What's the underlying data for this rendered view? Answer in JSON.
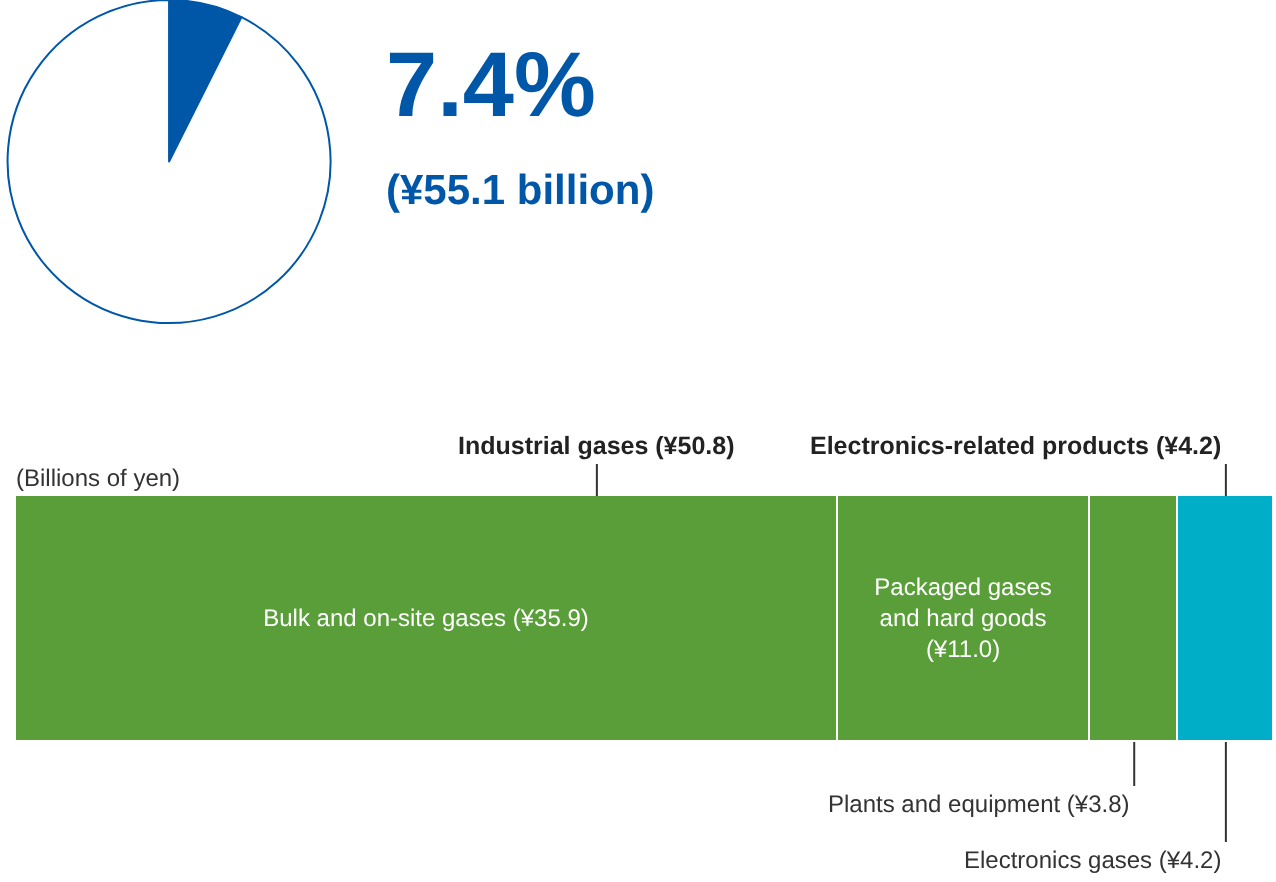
{
  "chart_data": [
    {
      "type": "pie",
      "title": "7.4%",
      "subtitle": "(¥55.1 billion)",
      "categories": [
        null,
        null
      ],
      "values": [
        7.4,
        92.6
      ],
      "colors": [
        "#0057a8",
        "#ffffff"
      ],
      "legend": false
    },
    {
      "type": "bar",
      "orientation": "horizontal",
      "stacked": true,
      "ylabel": "(Billions of yen)",
      "categories": [
        null
      ],
      "legend": false,
      "series": [
        {
          "name": "Bulk and on-site gases",
          "color": "#5a9e3a",
          "values": [
            35.9
          ],
          "value_labels": [
            "(¥35.9)"
          ]
        },
        {
          "name": "Packaged gases and hard goods",
          "color": "#5a9e3a",
          "values": [
            11.0
          ],
          "value_labels": [
            "(¥11.0)"
          ]
        },
        {
          "name": "Plants and equipment",
          "color": "#5a9e3a",
          "values": [
            3.8
          ],
          "value_labels": [
            "(¥3.8)"
          ]
        },
        {
          "name": "Electronics gases",
          "color": "#00aec7",
          "values": [
            4.2
          ],
          "value_labels": [
            "(¥4.2)"
          ]
        }
      ],
      "annotations": [
        "Industrial gases (¥50.8)",
        "Electronics-related products (¥4.2)"
      ]
    }
  ]
}
